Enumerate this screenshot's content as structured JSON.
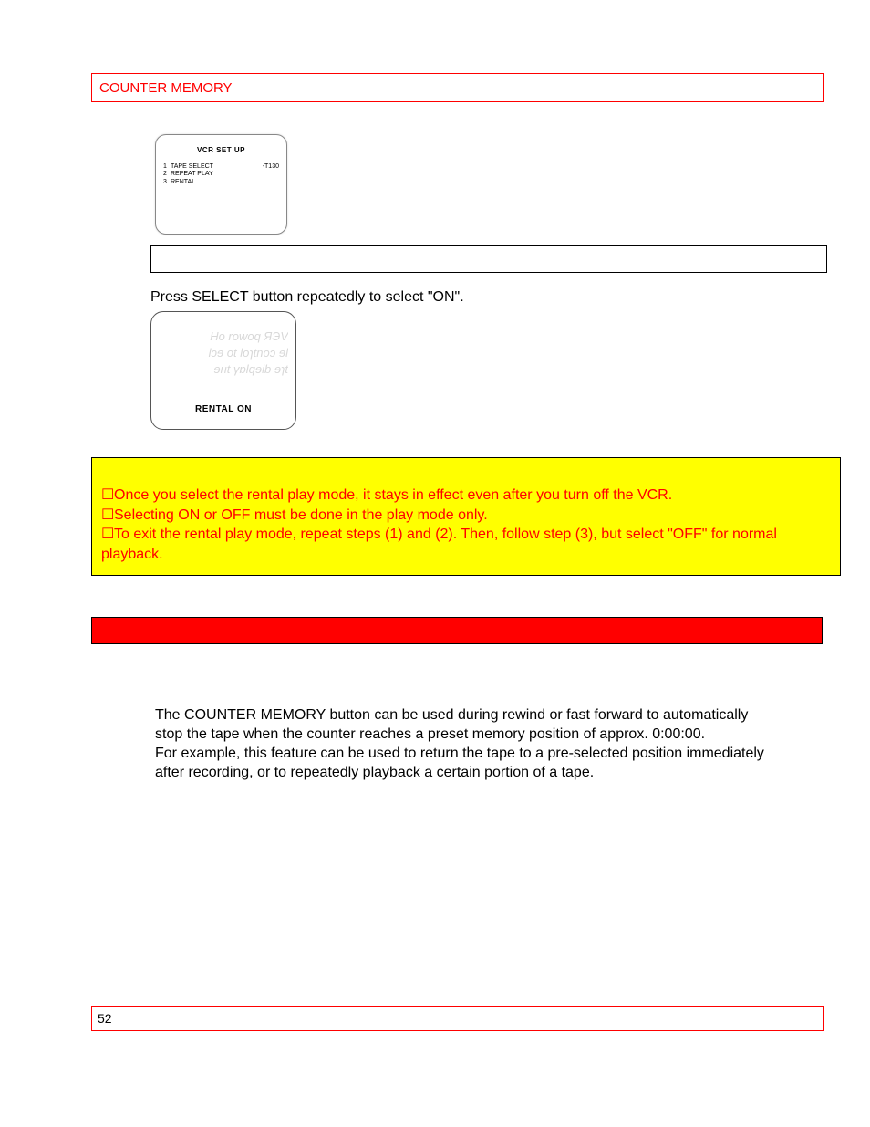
{
  "colors": {
    "red": "#ff0000",
    "yellow": "#ffff00",
    "black": "#000000",
    "white": "#ffffff",
    "ghost": "#d8d8d8",
    "border_gray": "#888888"
  },
  "typography": {
    "body_fontsize": 16,
    "header_fontsize": 15,
    "footer_fontsize": 14,
    "figure_small_fontsize": 8
  },
  "header": {
    "title": "COUNTER MEMORY"
  },
  "figure_setup": {
    "title": "VCR SET UP",
    "rows": [
      {
        "num": "1",
        "label": "TAPE SELECT",
        "value": "-T130"
      },
      {
        "num": "2",
        "label": "REPEAT PLAY",
        "value": ""
      },
      {
        "num": "3",
        "label": "RENTAL",
        "value": ""
      }
    ]
  },
  "instruction": "Press SELECT button repeatedly to select \"ON\".",
  "figure_rental": {
    "ghost_lines": [
      "Ho rowoq ЯЭV",
      "lɔɘ ot loɿtnoɔ ɘl",
      "ɘʜt γɒlqɘib ɘɿt"
    ],
    "label": "RENTAL ON"
  },
  "notes": {
    "bullet": "☐",
    "items": [
      "Once you select the rental play mode, it stays in effect even after you turn off the VCR.",
      "Selecting ON or OFF must be done in the play mode only.",
      "To exit the rental play mode, repeat steps (1) and (2).  Then, follow step (3), but select \"OFF\" for normal playback."
    ]
  },
  "body": {
    "paragraphs": [
      "The COUNTER MEMORY button can be used during rewind or fast forward to automatically stop the tape when the counter reaches a preset memory position of approx. 0:00:00.",
      "For example, this feature can be used to return the tape to a pre-selected position immediately after recording, or to repeatedly playback a certain portion of a tape."
    ]
  },
  "footer": {
    "page_number": "52"
  }
}
